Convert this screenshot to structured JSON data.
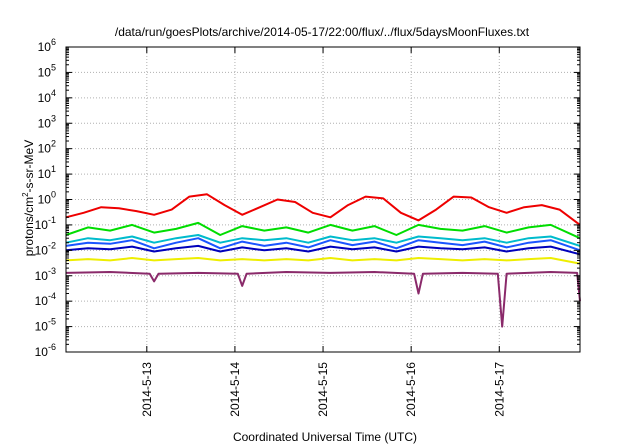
{
  "chart_data": {
    "type": "line",
    "title": "/data/run/goesPlots/archive/2014-05-17/22:00/flux/../flux/5daysMoonFluxes.txt",
    "xlabel": "Coordinated Universal Time (UTC)",
    "ylabel": {
      "main": "protons/cm",
      "sup": "2",
      "rest": "-s-sr-MeV"
    },
    "x_start": "2014-05-12T02:00",
    "x_end": "2014-05-17T22:00",
    "xlim_days": [
      0,
      5.833
    ],
    "x_ticks": [
      {
        "label": "2014-5-13",
        "day": 0.917
      },
      {
        "label": "2014-5-14",
        "day": 1.917
      },
      {
        "label": "2014-5-15",
        "day": 2.917
      },
      {
        "label": "2014-5-16",
        "day": 3.917
      },
      {
        "label": "2014-5-17",
        "day": 4.917
      }
    ],
    "y_scale": "log",
    "ylim": [
      1e-06,
      1000000.0
    ],
    "y_ticks": [
      {
        "base": "10",
        "exp": "-6",
        "value": -6
      },
      {
        "base": "10",
        "exp": "-5",
        "value": -5
      },
      {
        "base": "10",
        "exp": "-4",
        "value": -4
      },
      {
        "base": "10",
        "exp": "-3",
        "value": -3
      },
      {
        "base": "10",
        "exp": "-2",
        "value": -2
      },
      {
        "base": "10",
        "exp": "-1",
        "value": -1
      },
      {
        "base": "10",
        "exp": "0",
        "value": 0
      },
      {
        "base": "10",
        "exp": "1",
        "value": 1
      },
      {
        "base": "10",
        "exp": "2",
        "value": 2
      },
      {
        "base": "10",
        "exp": "3",
        "value": 3
      },
      {
        "base": "10",
        "exp": "4",
        "value": 4
      },
      {
        "base": "10",
        "exp": "5",
        "value": 5
      },
      {
        "base": "10",
        "exp": "6",
        "value": 6
      }
    ],
    "grid": true,
    "series": [
      {
        "color": "#00dd00",
        "x": [
          0,
          0.25,
          0.5,
          0.75,
          1,
          1.25,
          1.5,
          1.75,
          2,
          2.25,
          2.5,
          2.75,
          3,
          3.25,
          3.5,
          3.75,
          4,
          4.25,
          4.5,
          4.75,
          5,
          5.25,
          5.5,
          5.833
        ],
        "y": [
          0.04,
          0.08,
          0.06,
          0.1,
          0.05,
          0.07,
          0.12,
          0.04,
          0.09,
          0.06,
          0.08,
          0.05,
          0.1,
          0.06,
          0.09,
          0.04,
          0.1,
          0.07,
          0.06,
          0.09,
          0.05,
          0.08,
          0.1,
          0.03
        ]
      },
      {
        "color": "#00bbcc",
        "x": [
          0,
          0.25,
          0.5,
          0.75,
          1,
          1.25,
          1.5,
          1.75,
          2,
          2.25,
          2.5,
          2.75,
          3,
          3.25,
          3.5,
          3.75,
          4,
          4.25,
          4.5,
          4.75,
          5,
          5.25,
          5.5,
          5.833
        ],
        "y": [
          0.02,
          0.03,
          0.025,
          0.035,
          0.02,
          0.03,
          0.04,
          0.02,
          0.03,
          0.025,
          0.03,
          0.02,
          0.035,
          0.025,
          0.03,
          0.02,
          0.035,
          0.03,
          0.025,
          0.03,
          0.02,
          0.03,
          0.035,
          0.015
        ]
      },
      {
        "color": "#1a55ff",
        "x": [
          0,
          0.25,
          0.5,
          0.75,
          1,
          1.25,
          1.5,
          1.75,
          2,
          2.25,
          2.5,
          2.75,
          3,
          3.25,
          3.5,
          3.75,
          4,
          4.25,
          4.5,
          4.75,
          5,
          5.25,
          5.5,
          5.833
        ],
        "y": [
          0.015,
          0.02,
          0.018,
          0.025,
          0.012,
          0.02,
          0.03,
          0.012,
          0.022,
          0.015,
          0.02,
          0.013,
          0.025,
          0.016,
          0.022,
          0.012,
          0.025,
          0.02,
          0.016,
          0.022,
          0.013,
          0.02,
          0.025,
          0.01
        ]
      },
      {
        "color": "#0000bb",
        "x": [
          0,
          0.25,
          0.5,
          0.75,
          1,
          1.25,
          1.5,
          1.75,
          2,
          2.25,
          2.5,
          2.75,
          3,
          3.25,
          3.5,
          3.75,
          4,
          4.25,
          4.5,
          4.75,
          5,
          5.25,
          5.5,
          5.833
        ],
        "y": [
          0.01,
          0.012,
          0.011,
          0.014,
          0.009,
          0.012,
          0.015,
          0.009,
          0.013,
          0.01,
          0.012,
          0.009,
          0.014,
          0.011,
          0.013,
          0.009,
          0.014,
          0.012,
          0.011,
          0.013,
          0.009,
          0.012,
          0.014,
          0.007
        ]
      },
      {
        "color": "#eeee00",
        "x": [
          0,
          0.25,
          0.5,
          0.75,
          1,
          1.25,
          1.5,
          1.75,
          2,
          2.25,
          2.5,
          2.75,
          3,
          3.25,
          3.5,
          3.75,
          4,
          4.25,
          4.5,
          4.75,
          5,
          5.25,
          5.5,
          5.833
        ],
        "y": [
          0.004,
          0.0045,
          0.004,
          0.005,
          0.004,
          0.0045,
          0.005,
          0.004,
          0.0045,
          0.004,
          0.0045,
          0.004,
          0.005,
          0.004,
          0.0045,
          0.004,
          0.005,
          0.0045,
          0.004,
          0.0045,
          0.004,
          0.0045,
          0.005,
          0.003
        ]
      },
      {
        "color": "#8a2a6a",
        "x": [
          0,
          0.5,
          0.95,
          1,
          1.05,
          1.5,
          1.95,
          2,
          2.05,
          2.5,
          3,
          3.5,
          3.95,
          4,
          4.05,
          4.5,
          4.9,
          4.95,
          5.0,
          5.5,
          5.8,
          5.833
        ],
        "y": [
          0.0013,
          0.0014,
          0.0012,
          0.0006,
          0.0012,
          0.0013,
          0.0012,
          0.0004,
          0.0012,
          0.0014,
          0.0013,
          0.0014,
          0.0012,
          0.0002,
          0.0012,
          0.0013,
          0.0012,
          1e-05,
          0.0012,
          0.0014,
          0.0013,
          0.0001
        ]
      },
      {
        "color": "#ee0000",
        "x": [
          0,
          0.2,
          0.4,
          0.6,
          0.8,
          1,
          1.2,
          1.4,
          1.6,
          1.8,
          2,
          2.2,
          2.4,
          2.6,
          2.8,
          3,
          3.2,
          3.4,
          3.6,
          3.8,
          4,
          4.2,
          4.4,
          4.6,
          4.8,
          5,
          5.2,
          5.4,
          5.6,
          5.833
        ],
        "y": [
          0.2,
          0.3,
          0.5,
          0.45,
          0.35,
          0.25,
          0.4,
          1.3,
          1.6,
          0.6,
          0.25,
          0.5,
          1.0,
          0.8,
          0.3,
          0.2,
          0.6,
          1.3,
          1.1,
          0.3,
          0.15,
          0.4,
          1.3,
          1.2,
          0.5,
          0.3,
          0.5,
          0.6,
          0.4,
          0.1
        ]
      }
    ]
  }
}
